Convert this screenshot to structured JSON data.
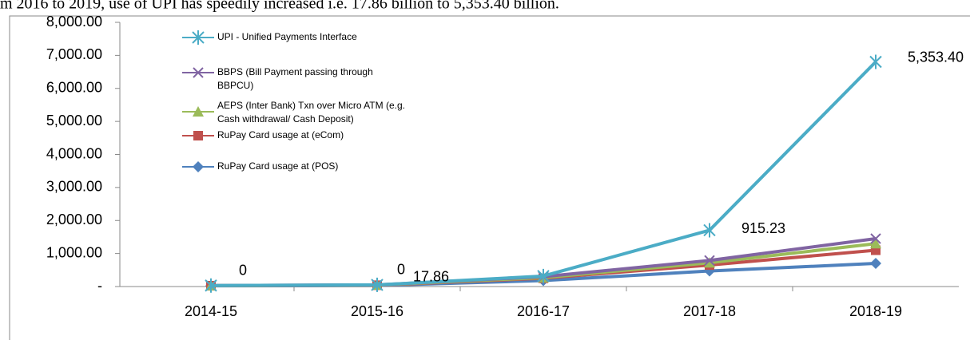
{
  "caption": "m 2016 to 2019, use of UPI has speedily increased i.e. 17.86 billion to 5,353.40 billion.",
  "chart_data": {
    "type": "stacked_line",
    "categories": [
      "2014-15",
      "2015-16",
      "2016-17",
      "2017-18",
      "2018-19"
    ],
    "series": [
      {
        "name": "RuPay Card usage at (POS)",
        "color": "#4f81bd",
        "marker": "diamond",
        "values": [
          20,
          30,
          180,
          470,
          700
        ]
      },
      {
        "name": "RuPay Card usage at (eCom)",
        "color": "#c0504d",
        "marker": "square",
        "values": [
          5,
          10,
          70,
          180,
          400
        ]
      },
      {
        "name": "AEPS (Inter Bank) Txn over Micro ATM (e.g. Cash withdrawal/ Cash Deposit)",
        "color": "#9bbb59",
        "marker": "triangle",
        "values": [
          3,
          5,
          20,
          70,
          200
        ]
      },
      {
        "name": "BBPS (Bill Payment passing through BBPCU)",
        "color": "#8064a2",
        "marker": "x",
        "values": [
          2,
          5,
          30,
          70,
          150
        ]
      },
      {
        "name": "UPI - Unified Payments Interface",
        "color": "#4bacc6",
        "marker": "star",
        "values": [
          0,
          0,
          17.86,
          915.23,
          5353.4
        ],
        "value_labels": [
          "0",
          "0",
          "17.86",
          "915.23",
          "5,353.40"
        ]
      }
    ],
    "ylim": [
      0,
      8000
    ],
    "yticks": [
      {
        "value": 0,
        "label": "-"
      },
      {
        "value": 1000,
        "label": "1,000.00"
      },
      {
        "value": 2000,
        "label": "2,000.00"
      },
      {
        "value": 3000,
        "label": "3,000.00"
      },
      {
        "value": 4000,
        "label": "4,000.00"
      },
      {
        "value": 5000,
        "label": "5,000.00"
      },
      {
        "value": 6000,
        "label": "6,000.00"
      },
      {
        "value": 7000,
        "label": "7,000.00"
      },
      {
        "value": 8000,
        "label": "8,000.00"
      }
    ],
    "legend": "top-left"
  }
}
